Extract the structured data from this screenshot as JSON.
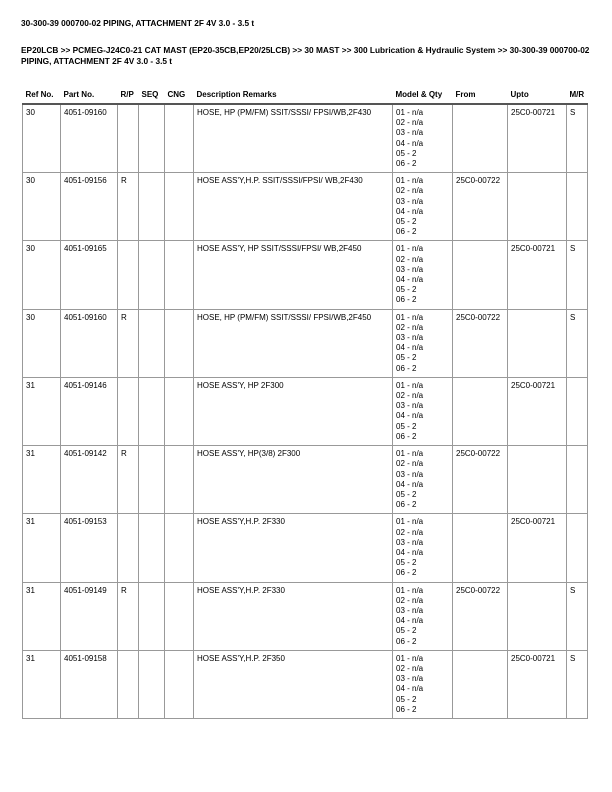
{
  "title": "30-300-39 000700-02 PIPING, ATTACHMENT 2F 4V 3.0 - 3.5 t",
  "breadcrumb": "EP20LCB >> PCMEG-J24C0-21 CAT MAST (EP20-35CB,EP20/25LCB) >> 30 MAST >> 300 Lubrication & Hydraulic System >> 30-300-39 000700-02 PIPING, ATTACHMENT 2F 4V 3.0 - 3.5 t",
  "columns": [
    "Ref No.",
    "Part No.",
    "R/P",
    "SEQ",
    "CNG",
    "Description Remarks",
    "Model & Qty",
    "From",
    "Upto",
    "M/R"
  ],
  "model_qty": [
    "01 - n/a",
    "02 - n/a",
    "03 - n/a",
    "04 - n/a",
    "05 - 2",
    "06 - 2"
  ],
  "rows": [
    {
      "ref": "30",
      "part": "4051-09160",
      "rp": "",
      "seq": "",
      "cng": "",
      "desc": "HOSE, HP (PM/FM) SSIT/SSSI/ FPSI/WB,2F430",
      "from": "",
      "upto": "25C0-00721",
      "mr": "S"
    },
    {
      "ref": "30",
      "part": "4051-09156",
      "rp": "R",
      "seq": "",
      "cng": "",
      "desc": "HOSE ASS'Y,H.P. SSIT/SSSI/FPSI/ WB,2F430",
      "from": "25C0-00722",
      "upto": "",
      "mr": ""
    },
    {
      "ref": "30",
      "part": "4051-09165",
      "rp": "",
      "seq": "",
      "cng": "",
      "desc": "HOSE ASS'Y, HP SSIT/SSSI/FPSI/ WB,2F450",
      "from": "",
      "upto": "25C0-00721",
      "mr": "S"
    },
    {
      "ref": "30",
      "part": "4051-09160",
      "rp": "R",
      "seq": "",
      "cng": "",
      "desc": "HOSE, HP (PM/FM) SSIT/SSSI/ FPSI/WB,2F450",
      "from": "25C0-00722",
      "upto": "",
      "mr": "S"
    },
    {
      "ref": "31",
      "part": "4051-09146",
      "rp": "",
      "seq": "",
      "cng": "",
      "desc": "HOSE ASS'Y, HP 2F300",
      "from": "",
      "upto": "25C0-00721",
      "mr": ""
    },
    {
      "ref": "31",
      "part": "4051-09142",
      "rp": "R",
      "seq": "",
      "cng": "",
      "desc": "HOSE ASS'Y, HP(3/8) 2F300",
      "from": "25C0-00722",
      "upto": "",
      "mr": ""
    },
    {
      "ref": "31",
      "part": "4051-09153",
      "rp": "",
      "seq": "",
      "cng": "",
      "desc": "HOSE ASS'Y,H.P. 2F330",
      "from": "",
      "upto": "25C0-00721",
      "mr": ""
    },
    {
      "ref": "31",
      "part": "4051-09149",
      "rp": "R",
      "seq": "",
      "cng": "",
      "desc": "HOSE ASS'Y,H.P. 2F330",
      "from": "25C0-00722",
      "upto": "",
      "mr": "S"
    },
    {
      "ref": "31",
      "part": "4051-09158",
      "rp": "",
      "seq": "",
      "cng": "",
      "desc": "HOSE ASS'Y,H.P. 2F350",
      "from": "",
      "upto": "25C0-00721",
      "mr": "S"
    }
  ]
}
